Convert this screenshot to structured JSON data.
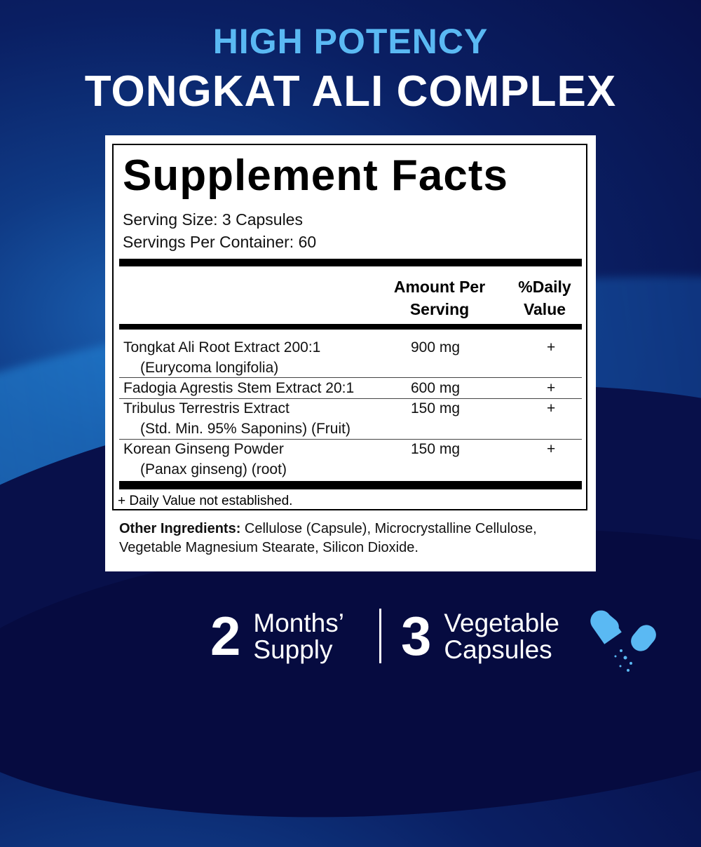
{
  "headline": {
    "line1": "HIGH POTENCY",
    "line2": "TONGKAT ALI COMPLEX"
  },
  "facts": {
    "title": "Supplement Facts",
    "serving_size": "Serving Size: 3 Capsules",
    "servings_per_container": "Servings Per Container: 60",
    "col_amount": [
      "Amount Per",
      "Serving"
    ],
    "col_dv": [
      "%Daily",
      "Value"
    ],
    "rows": [
      {
        "name": "Tongkat Ali Root Extract 200:1",
        "sub": "(Eurycoma longifolia)",
        "amount": "900 mg",
        "dv": "+"
      },
      {
        "name": "Fadogia Agrestis Stem Extract 20:1",
        "sub": "",
        "amount": "600 mg",
        "dv": "+"
      },
      {
        "name": "Tribulus Terrestris Extract",
        "sub": "(Std. Min. 95% Saponins) (Fruit)",
        "amount": "150 mg",
        "dv": "+"
      },
      {
        "name": "Korean Ginseng Powder",
        "sub": "(Panax ginseng) (root)",
        "amount": "150 mg",
        "dv": "+"
      }
    ],
    "footnote": "+ Daily Value not established.",
    "other_label": "Other Ingredients:",
    "other_text": " Cellulose (Capsule), Microcrystalline Cellulose, Vegetable Magnesium Stearate, Silicon Dioxide."
  },
  "badges": [
    {
      "number": "2",
      "line1": "Months’",
      "line2": "Supply"
    },
    {
      "number": "3",
      "line1": "Vegetable",
      "line2": "Capsules"
    }
  ],
  "colors": {
    "accent": "#5ab9f3",
    "background": "#0a1f63"
  },
  "icons": [
    "capsule-icon"
  ]
}
